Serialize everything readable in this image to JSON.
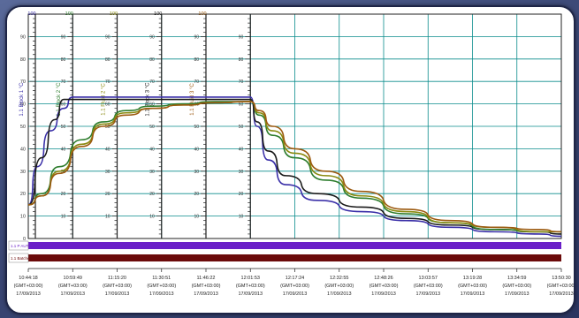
{
  "colors": {
    "grid": "#0a8c8c",
    "axis": "#222222",
    "block_1_1": "#3a2fa8",
    "block_2_1": "#2e7d2e",
    "block_3_1": "#1a1a1a",
    "fluid_2_1": "#8a8a10",
    "fluid_3_1": "#9c5a10",
    "band_purple": "#6a1fc8",
    "band_maroon": "#6b0a0a"
  },
  "axes": [
    {
      "label": "1.1 Block 1 °C",
      "top": "100",
      "color": "#3a2fa8"
    },
    {
      "label": "1.1 Block 2 °C",
      "top": "100",
      "color": "#2e7d2e"
    },
    {
      "label": "1.1 Fluid 2 °C",
      "top": "100",
      "color": "#8a8a10"
    },
    {
      "label": "1.1 Block 3 °C",
      "top": "100",
      "color": "#1a1a1a"
    },
    {
      "label": "1.1 Fluid 3 °C",
      "top": "100",
      "color": "#9c5a10"
    }
  ],
  "left_axis_ticks": [
    "90",
    "80",
    "70",
    "60",
    "50",
    "40",
    "30",
    "20",
    "10",
    "0"
  ],
  "bands": [
    {
      "label": "1.1 P AUT",
      "color": "#6a1fc8"
    },
    {
      "label": "1.1 Batches",
      "color": "#6b0a0a"
    }
  ],
  "chart_data": {
    "type": "line",
    "ylim": [
      0,
      100
    ],
    "x_ticks": [
      {
        "time": "10:44:18",
        "tz": "(GMT+03:00)",
        "date": "17/09/2013"
      },
      {
        "time": "10:59:49",
        "tz": "(GMT+03:00)",
        "date": "17/09/2013"
      },
      {
        "time": "11:15:20",
        "tz": "(GMT+03:00)",
        "date": "17/09/2013"
      },
      {
        "time": "11:30:51",
        "tz": "(GMT+03:00)",
        "date": "17/09/2013"
      },
      {
        "time": "11:46:22",
        "tz": "(GMT+03:00)",
        "date": "17/09/2013"
      },
      {
        "time": "12:01:53",
        "tz": "(GMT+03:00)",
        "date": "17/09/2013"
      },
      {
        "time": "12:17:24",
        "tz": "(GMT+03:00)",
        "date": "17/09/2013"
      },
      {
        "time": "12:32:55",
        "tz": "(GMT+03:00)",
        "date": "17/09/2013"
      },
      {
        "time": "12:48:26",
        "tz": "(GMT+03:00)",
        "date": "17/09/2013"
      },
      {
        "time": "13:03:57",
        "tz": "(GMT+03:00)",
        "date": "17/09/2013"
      },
      {
        "time": "13:19:28",
        "tz": "(GMT+03:00)",
        "date": "17/09/2013"
      },
      {
        "time": "13:34:59",
        "tz": "(GMT+03:00)",
        "date": "17/09/2013"
      },
      {
        "time": "13:50:30",
        "tz": "(GMT+03:00)",
        "date": "17/09/2013"
      }
    ],
    "series": [
      {
        "name": "1.1 Block 1 °C",
        "color": "#3a2fa8",
        "points": [
          [
            0,
            15
          ],
          [
            0.2,
            32
          ],
          [
            0.5,
            48
          ],
          [
            0.8,
            58
          ],
          [
            1.0,
            63
          ],
          [
            1.3,
            63
          ],
          [
            2,
            63
          ],
          [
            3,
            63
          ],
          [
            4,
            63
          ],
          [
            5,
            63
          ],
          [
            5.15,
            50
          ],
          [
            5.4,
            35
          ],
          [
            5.8,
            24
          ],
          [
            6.5,
            17
          ],
          [
            7.5,
            12
          ],
          [
            8.5,
            8
          ],
          [
            9.5,
            5
          ],
          [
            10.5,
            3
          ],
          [
            11.5,
            2
          ],
          [
            12,
            1
          ]
        ]
      },
      {
        "name": "1.1 Block 3 °C",
        "color": "#1a1a1a",
        "points": [
          [
            0,
            15
          ],
          [
            0.3,
            36
          ],
          [
            0.6,
            53
          ],
          [
            0.8,
            62
          ],
          [
            1.0,
            62
          ],
          [
            1.5,
            62
          ],
          [
            2,
            62
          ],
          [
            3,
            62
          ],
          [
            4,
            62
          ],
          [
            5,
            62
          ],
          [
            5.15,
            52
          ],
          [
            5.4,
            39
          ],
          [
            5.8,
            28
          ],
          [
            6.5,
            20
          ],
          [
            7.5,
            14
          ],
          [
            8.5,
            9
          ],
          [
            9.5,
            6
          ],
          [
            10.5,
            4
          ],
          [
            11.5,
            3
          ],
          [
            12,
            2
          ]
        ]
      },
      {
        "name": "1.1 Block 2 °C",
        "color": "#2e7d2e",
        "points": [
          [
            0,
            15
          ],
          [
            0.3,
            20
          ],
          [
            0.7,
            32
          ],
          [
            1.2,
            44
          ],
          [
            1.7,
            52
          ],
          [
            2.2,
            57
          ],
          [
            2.8,
            59
          ],
          [
            3.5,
            60
          ],
          [
            4.2,
            61
          ],
          [
            5,
            61
          ],
          [
            5.2,
            55
          ],
          [
            5.5,
            46
          ],
          [
            6.0,
            36
          ],
          [
            6.7,
            26
          ],
          [
            7.5,
            18
          ],
          [
            8.5,
            11
          ],
          [
            9.5,
            7
          ],
          [
            10.5,
            4
          ],
          [
            11.5,
            3
          ],
          [
            12,
            3
          ]
        ]
      },
      {
        "name": "1.1 Fluid 2 °C",
        "color": "#8a8a10",
        "points": [
          [
            0,
            15
          ],
          [
            0.3,
            19
          ],
          [
            0.7,
            30
          ],
          [
            1.2,
            42
          ],
          [
            1.7,
            51
          ],
          [
            2.2,
            56
          ],
          [
            2.8,
            58
          ],
          [
            3.5,
            59.5
          ],
          [
            4.2,
            60.5
          ],
          [
            5,
            61
          ],
          [
            5.2,
            56
          ],
          [
            5.5,
            48
          ],
          [
            6.0,
            38
          ],
          [
            6.7,
            28
          ],
          [
            7.5,
            19
          ],
          [
            8.5,
            12
          ],
          [
            9.5,
            7
          ],
          [
            10.5,
            5
          ],
          [
            11.5,
            3
          ],
          [
            12,
            3
          ]
        ]
      },
      {
        "name": "1.1 Fluid 3 °C",
        "color": "#9c5a10",
        "points": [
          [
            0,
            15
          ],
          [
            0.3,
            19
          ],
          [
            0.7,
            29
          ],
          [
            1.2,
            41
          ],
          [
            1.7,
            50
          ],
          [
            2.2,
            55
          ],
          [
            2.8,
            58
          ],
          [
            3.5,
            59.5
          ],
          [
            4.2,
            60.5
          ],
          [
            5,
            61
          ],
          [
            5.2,
            57
          ],
          [
            5.5,
            50
          ],
          [
            6.0,
            40
          ],
          [
            6.7,
            30
          ],
          [
            7.5,
            21
          ],
          [
            8.5,
            13
          ],
          [
            9.5,
            8
          ],
          [
            10.5,
            5
          ],
          [
            11.5,
            4
          ],
          [
            12,
            3
          ]
        ]
      }
    ]
  }
}
